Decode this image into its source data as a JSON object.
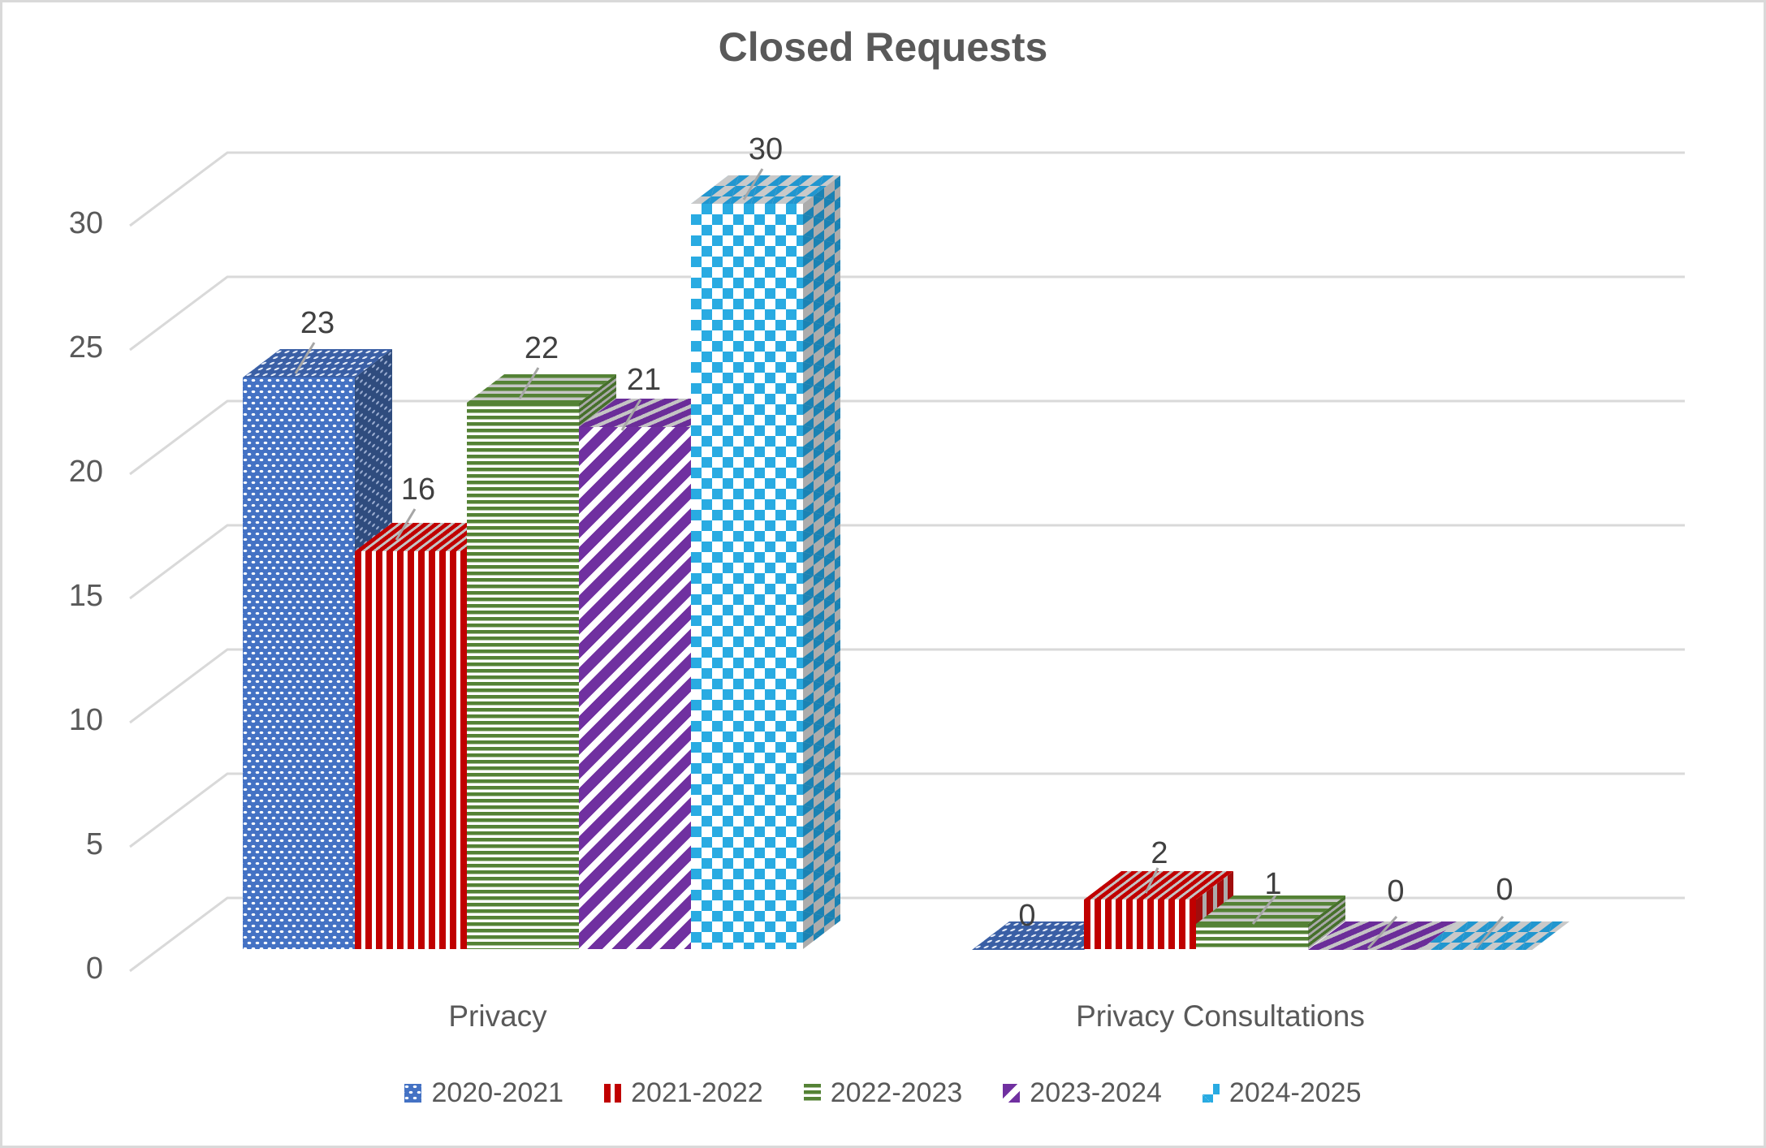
{
  "title": "Closed Requests",
  "chart_data": {
    "type": "bar",
    "projection": "3d",
    "title": "Closed Requests",
    "categories": [
      "Privacy",
      "Privacy Consultations"
    ],
    "series": [
      {
        "name": "2020-2021",
        "pattern": "white-dots",
        "color": "#4472C4",
        "values": [
          23,
          0
        ]
      },
      {
        "name": "2021-2022",
        "pattern": "vertical-stripes",
        "color": "#C00000",
        "values": [
          16,
          2
        ]
      },
      {
        "name": "2022-2023",
        "pattern": "horizontal-stripes",
        "color": "#548235",
        "values": [
          22,
          1
        ]
      },
      {
        "name": "2023-2024",
        "pattern": "diagonal-stripes",
        "color": "#7030A0",
        "values": [
          21,
          0
        ]
      },
      {
        "name": "2024-2025",
        "pattern": "checkerboard",
        "color": "#29ABE2",
        "values": [
          30,
          0
        ]
      }
    ],
    "data_labels": [
      [
        23,
        16,
        22,
        21,
        30
      ],
      [
        0,
        2,
        1,
        0,
        0
      ]
    ],
    "xlabel": "",
    "ylabel": "",
    "ylim": [
      0,
      30
    ],
    "yticks": [
      0,
      5,
      10,
      15,
      20,
      25,
      30
    ],
    "grid": true,
    "legend_position": "bottom"
  },
  "colors": {
    "text": "#595959",
    "data_label": "#404040",
    "gridline": "#D9D9D9",
    "leader_line": "#A6A6A6",
    "background": "#FFFFFF"
  }
}
